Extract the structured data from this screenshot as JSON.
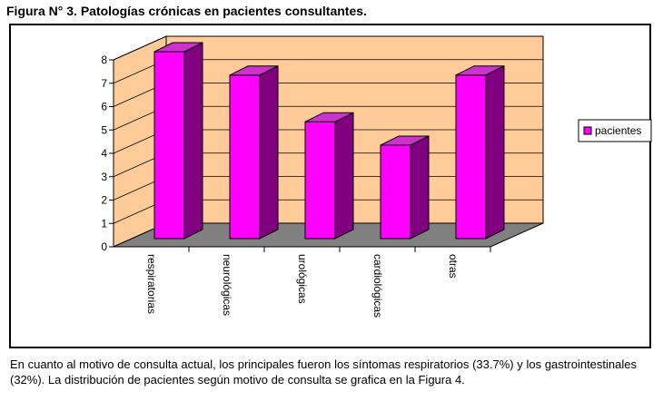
{
  "figure_title": "Figura N° 3. Patologías crónicas en pacientes consultantes.",
  "caption": "En cuanto al motivo de consulta actual, los principales fueron los síntomas respiratorios (33.7%) y los gastrointestinales (32%).  La distribución de pacientes según motivo de consulta se grafica en la Figura 4.",
  "chart_data": {
    "type": "bar",
    "title": "",
    "xlabel": "",
    "ylabel": "",
    "categories": [
      "respiratorias",
      "neurológicas",
      "urológicas",
      "cardiológicas",
      "otras"
    ],
    "series": [
      {
        "name": "pacientes",
        "values": [
          8,
          7,
          5,
          4,
          7
        ]
      }
    ],
    "ylim": [
      0,
      8
    ],
    "yticks": [
      "0",
      "1",
      "2",
      "3",
      "4",
      "5",
      "6",
      "7",
      "8"
    ],
    "grid": true,
    "legend_position": "right",
    "colors": {
      "bar_front": "#ff00ff",
      "bar_side": "#800080",
      "bar_top": "#cc33cc",
      "wall": "#ffcc99",
      "floor": "#808080"
    }
  }
}
